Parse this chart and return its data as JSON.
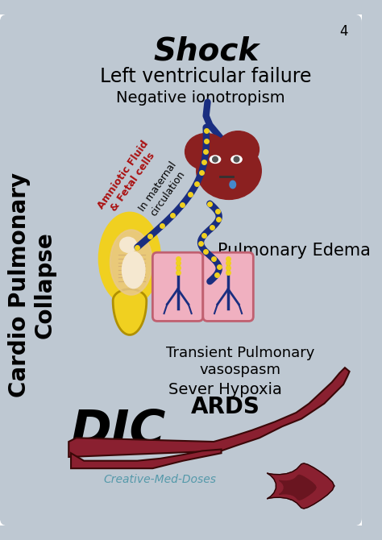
{
  "bg_color": "#bec8d2",
  "title": "Shock",
  "title_fontsize": 28,
  "subtitle": "Left ventricular failure",
  "subtitle_fontsize": 17,
  "neg_iono": "Negative ionotropism",
  "neg_iono_fontsize": 14,
  "cardio_text": "Cardio Pulmonary\nCollapse",
  "cardio_fontsize": 20,
  "pulm_edema": "Pulmonary Edema",
  "pulm_edema_fontsize": 15,
  "transient": "Transient Pulmonary\nvasospasm",
  "transient_fontsize": 13,
  "sever": "Sever Hypoxia",
  "sever_fontsize": 14,
  "ards": "ARDS",
  "ards_fontsize": 20,
  "dic": "DIC",
  "dic_fontsize": 44,
  "credit": "Creative-Med-Doses",
  "credit_fontsize": 10,
  "amniotic_text": "Amniotic Fluid\n& Fetal cells",
  "amniotic_fontsize": 9,
  "maternal_text": "In maternal\ncirculation",
  "maternal_fontsize": 9,
  "page_num": "4",
  "dark_red": "#8B2020",
  "blue": "#1a2e80",
  "yellow": "#f0d020",
  "pink": "#f0b0c0",
  "red_dark": "#8a2030"
}
